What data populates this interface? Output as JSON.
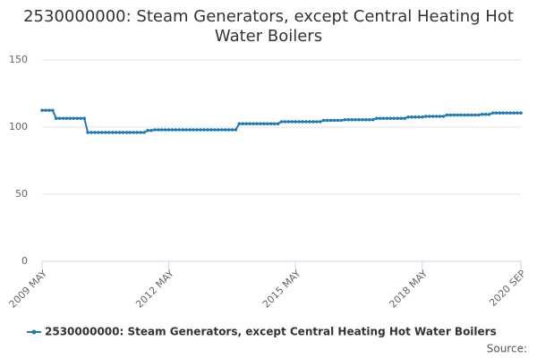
{
  "chart_data": {
    "type": "line",
    "title": "2530000000: Steam Generators, except Central Heating Hot Water Boilers",
    "source": "Source:",
    "categories": [
      "2009 MAY",
      null,
      null,
      null,
      null,
      null,
      null,
      null,
      null,
      null,
      null,
      null,
      null,
      null,
      null,
      null,
      null,
      null,
      null,
      null,
      null,
      null,
      null,
      null,
      null,
      null,
      null,
      null,
      null,
      null,
      null,
      null,
      null,
      null,
      null,
      null,
      "2012 MAY",
      null,
      null,
      null,
      null,
      null,
      null,
      null,
      null,
      null,
      null,
      null,
      null,
      null,
      null,
      null,
      null,
      null,
      null,
      null,
      null,
      null,
      null,
      null,
      null,
      null,
      null,
      null,
      null,
      null,
      null,
      null,
      null,
      null,
      null,
      null,
      "2015 MAY",
      null,
      null,
      null,
      null,
      null,
      null,
      null,
      null,
      null,
      null,
      null,
      null,
      null,
      null,
      null,
      null,
      null,
      null,
      null,
      null,
      null,
      null,
      null,
      null,
      null,
      null,
      null,
      null,
      null,
      null,
      null,
      null,
      null,
      null,
      null,
      "2018 MAY",
      null,
      null,
      null,
      null,
      null,
      null,
      null,
      null,
      null,
      null,
      null,
      null,
      null,
      null,
      null,
      null,
      null,
      null,
      null,
      null,
      null,
      null,
      null,
      null,
      null,
      null,
      null,
      "2020 SEP"
    ],
    "series": [
      {
        "name": "2530000000: Steam Generators, except Central Heating Hot Water Boilers",
        "color": "#1f7bb6",
        "values": [
          112.5,
          112.5,
          112.5,
          112.5,
          106.5,
          106.5,
          106.5,
          106.5,
          106.5,
          106.5,
          106.5,
          106.5,
          106.5,
          96,
          96,
          96,
          96,
          96,
          96,
          96,
          96,
          96,
          96,
          96,
          96,
          96,
          96,
          96,
          96,
          96,
          97.5,
          97.5,
          98,
          98,
          98,
          98,
          98,
          98,
          98,
          98,
          98,
          98,
          98,
          98,
          98,
          98,
          98,
          98,
          98,
          98,
          98,
          98,
          98,
          98,
          98,
          98,
          102.5,
          102.5,
          102.5,
          102.5,
          102.5,
          102.5,
          102.5,
          102.5,
          102.5,
          102.5,
          102.5,
          102.5,
          104,
          104,
          104,
          104,
          104,
          104,
          104,
          104,
          104,
          104,
          104,
          104,
          105,
          105,
          105,
          105,
          105,
          105,
          105.5,
          105.5,
          105.5,
          105.5,
          105.5,
          105.5,
          105.5,
          105.5,
          105.5,
          106.5,
          106.5,
          106.5,
          106.5,
          106.5,
          106.5,
          106.5,
          106.5,
          106.5,
          107.5,
          107.5,
          107.5,
          107.5,
          107.5,
          108,
          108,
          108,
          108,
          108,
          108,
          109,
          109,
          109,
          109,
          109,
          109,
          109,
          109,
          109,
          109,
          109.5,
          109.5,
          109.5,
          110.5,
          110.5,
          110.5,
          110.5,
          110.5,
          110.5,
          110.5,
          110.5,
          110.5
        ]
      }
    ],
    "ylim": [
      0,
      150
    ],
    "yticks": [
      0,
      50,
      100,
      150
    ],
    "grid": true
  }
}
